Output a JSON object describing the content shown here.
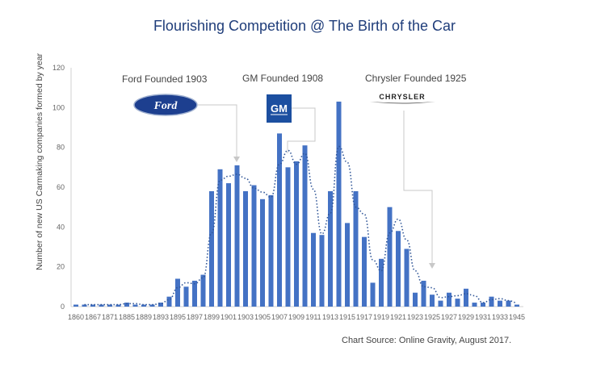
{
  "chart_data": {
    "type": "bar",
    "title": "Flourishing Competition @ The Birth of the Car",
    "ylabel": "Number of new US Carmaking companies formed by year",
    "xlabel": "",
    "ylim": [
      0,
      120
    ],
    "yticks": [
      "0",
      "20",
      "40",
      "60",
      "80",
      "100",
      "120"
    ],
    "tick_labels": [
      "1860",
      "1867",
      "1871",
      "1885",
      "1889",
      "1893",
      "1895",
      "1897",
      "1899",
      "1901",
      "1903",
      "1905",
      "1907",
      "1909",
      "1911",
      "1913",
      "1915",
      "1917",
      "1919",
      "1921",
      "1923",
      "1925",
      "1927",
      "1929",
      "1931",
      "1933",
      "1945"
    ],
    "values": [
      1,
      1,
      1,
      1,
      1,
      1,
      2,
      1,
      1,
      1,
      2,
      5,
      14,
      10,
      13,
      16,
      58,
      69,
      62,
      71,
      58,
      61,
      54,
      56,
      87,
      70,
      73,
      81,
      37,
      36,
      58,
      103,
      42,
      58,
      35,
      12,
      24,
      50,
      38,
      29,
      7,
      13,
      6,
      3,
      7,
      4,
      9,
      2,
      2,
      5,
      3,
      3,
      1
    ],
    "trendline": "2-period moving average (dotted)",
    "bar_color": "#4472c4",
    "grid": false,
    "annotations": [
      "Ford Founded 1903",
      "GM Founded 1908",
      "Chrysler Founded 1925"
    ],
    "source": "Chart Source: Online Gravity, August 2017."
  },
  "logos": {
    "ford": "Ford",
    "gm": "GM",
    "chrysler": "CHRYSLER"
  }
}
